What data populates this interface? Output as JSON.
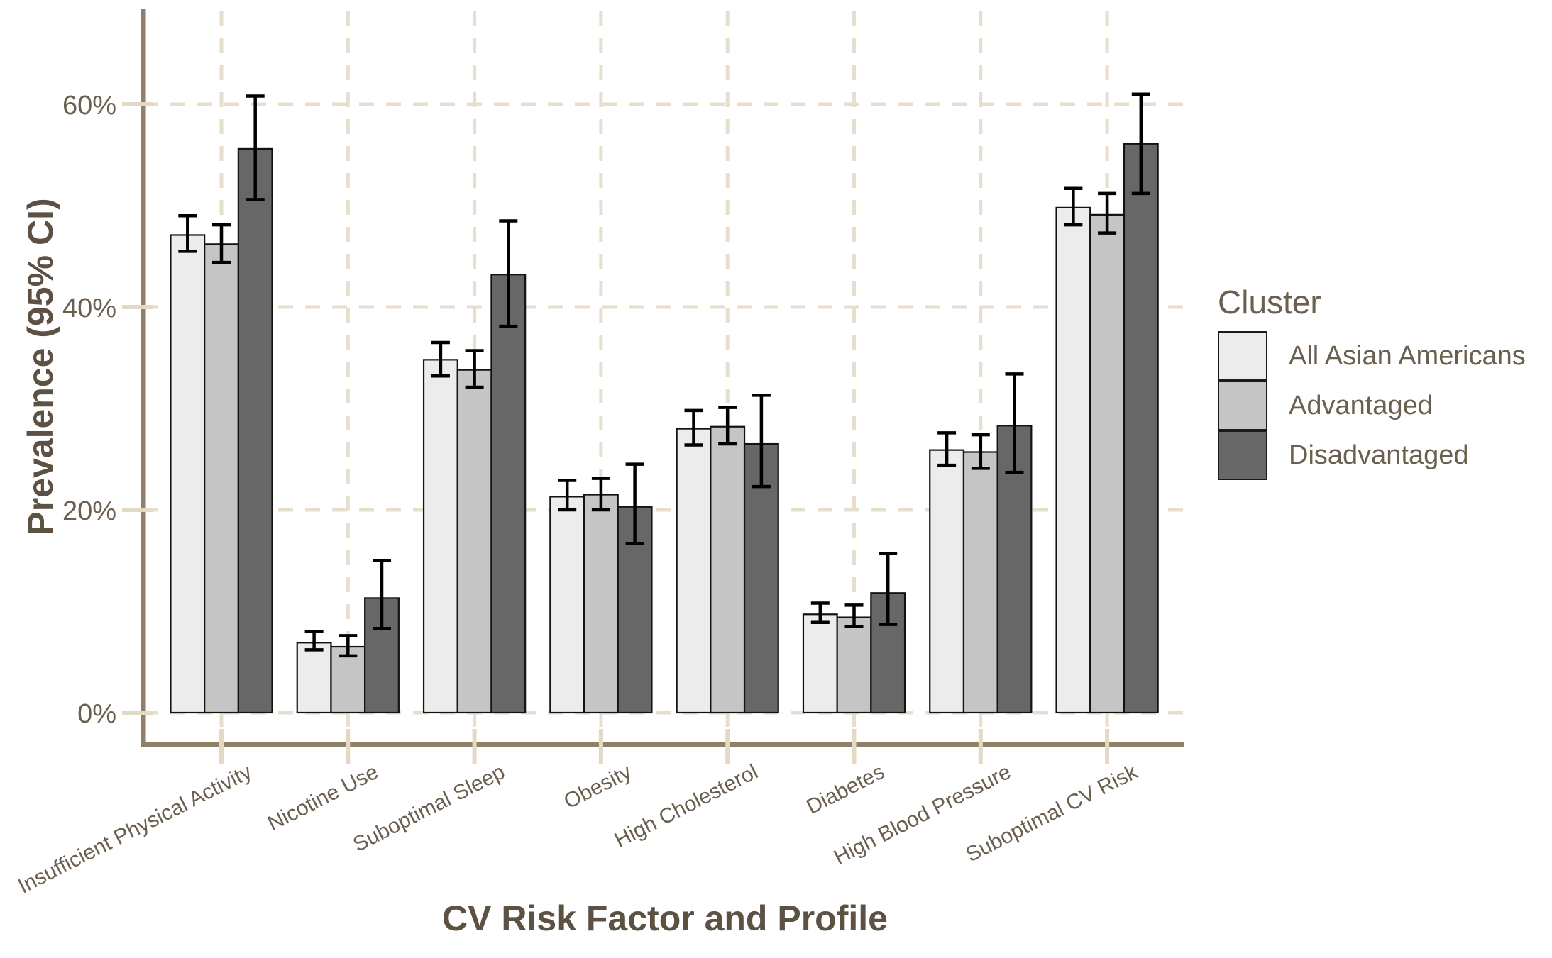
{
  "chart_data": {
    "type": "bar",
    "title": "",
    "xlabel": "CV Risk Factor and Profile",
    "ylabel": "Prevalence (95% CI)",
    "legend_title": "Cluster",
    "legend_position": "right",
    "grid": "dashed",
    "error_bars": true,
    "ci_level": "95%",
    "categories": [
      "Insufficient Physical Activity",
      "Nicotine Use",
      "Suboptimal Sleep",
      "Obesity",
      "High Cholesterol",
      "Diabetes",
      "High Blood Pressure",
      "Suboptimal CV Risk"
    ],
    "y_ticks": [
      "0%",
      "20%",
      "40%",
      "60%"
    ],
    "y_tick_values": [
      0,
      20,
      40,
      60
    ],
    "ylim": [
      0,
      68
    ],
    "series": [
      {
        "name": "All Asian Americans",
        "color": "#ECECEC",
        "values": [
          47.1,
          6.9,
          34.8,
          21.3,
          28.0,
          9.7,
          25.9,
          49.8
        ],
        "ci_low": [
          45.5,
          6.2,
          33.2,
          20.0,
          26.4,
          8.9,
          24.4,
          48.1
        ],
        "ci_high": [
          49.0,
          8.0,
          36.5,
          22.9,
          29.8,
          10.8,
          27.6,
          51.7
        ]
      },
      {
        "name": "Advantaged",
        "color": "#C5C5C5",
        "values": [
          46.2,
          6.5,
          33.8,
          21.5,
          28.2,
          9.4,
          25.7,
          49.1
        ],
        "ci_low": [
          44.4,
          5.6,
          32.1,
          20.0,
          26.5,
          8.5,
          24.1,
          47.3
        ],
        "ci_high": [
          48.1,
          7.6,
          35.7,
          23.1,
          30.1,
          10.6,
          27.4,
          51.2
        ]
      },
      {
        "name": "Disadvantaged",
        "color": "#676767",
        "values": [
          55.6,
          11.3,
          43.2,
          20.3,
          26.5,
          11.8,
          28.3,
          56.1
        ],
        "ci_low": [
          50.6,
          8.3,
          38.1,
          16.7,
          22.3,
          8.7,
          23.7,
          51.2
        ],
        "ci_high": [
          60.8,
          15.0,
          48.5,
          24.5,
          31.3,
          15.7,
          33.4,
          61.0
        ]
      }
    ]
  },
  "theme": {
    "background": "#FFFFFF",
    "gridline_color": "#E8DECD",
    "tick_color": "#E4D9C3",
    "axis_line_color": "#8E8069",
    "bar_stroke_color": "#121212",
    "error_bar_color": "#000000",
    "tick_label_color": "#6B604F",
    "title_color": "#5C5143"
  }
}
